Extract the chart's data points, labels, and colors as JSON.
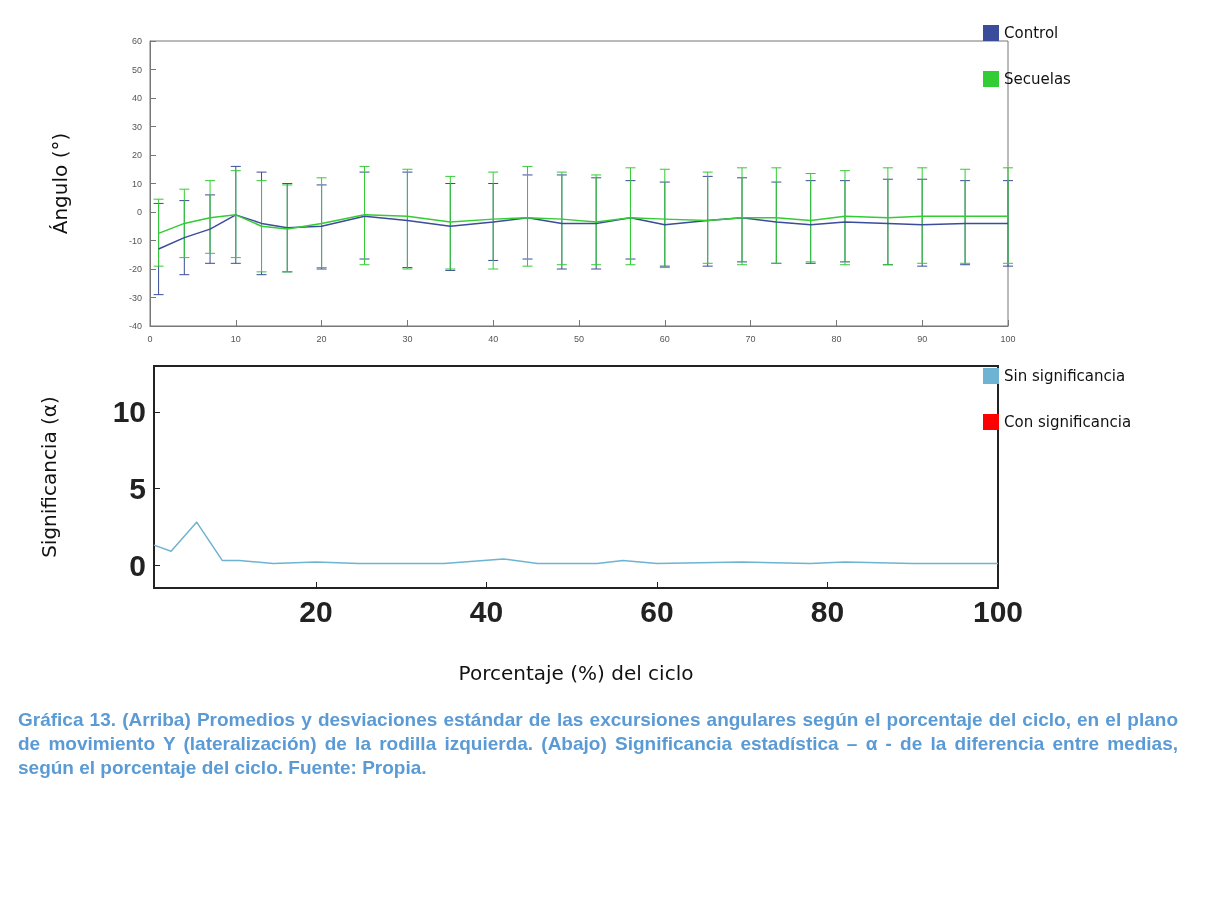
{
  "chart_data": [
    {
      "type": "line",
      "ylabel": "Ángulo (°)",
      "xlim": [
        0,
        100
      ],
      "xticks": [
        0,
        10,
        20,
        30,
        40,
        50,
        60,
        70,
        80,
        90,
        100
      ],
      "ylim": [
        -40,
        60
      ],
      "yticks": [
        -40,
        -30,
        -20,
        -10,
        0,
        10,
        20,
        30,
        40,
        50,
        60
      ],
      "grid": false,
      "legend": "right",
      "marker": "none",
      "x": [
        1,
        4,
        7,
        10,
        13,
        16,
        20,
        25,
        30,
        35,
        40,
        44,
        48,
        52,
        56,
        60,
        65,
        69,
        73,
        77,
        81,
        86,
        90,
        95,
        100
      ],
      "series": [
        {
          "name": "Control",
          "color": "#3b4c9b",
          "values": [
            -13,
            -9,
            -6,
            -1,
            -4,
            -5.5,
            -5,
            -1.5,
            -3,
            -5,
            -3.5,
            -2,
            -4,
            -4,
            -2,
            -4.5,
            -3,
            -2,
            -3.5,
            -4.5,
            -3.5,
            -4,
            -4.5,
            -4,
            -4
          ],
          "errors": [
            [
              -29,
              3
            ],
            [
              -22,
              4
            ],
            [
              -18,
              6
            ],
            [
              -18,
              16
            ],
            [
              -22,
              14
            ],
            [
              -21,
              10
            ],
            [
              -20,
              9.5
            ],
            [
              -16.5,
              14
            ],
            [
              -19.5,
              14
            ],
            [
              -20.5,
              10
            ],
            [
              -17,
              10
            ],
            [
              -16.5,
              13
            ],
            [
              -20,
              13
            ],
            [
              -20,
              12
            ],
            [
              -16.5,
              11
            ],
            [
              -19,
              10.5
            ],
            [
              -19,
              12.5
            ],
            [
              -17.5,
              12
            ],
            [
              -18,
              10.5
            ],
            [
              -18,
              11
            ],
            [
              -17.5,
              11
            ],
            [
              -18.5,
              11.5
            ],
            [
              -19,
              11.5
            ],
            [
              -18.5,
              11
            ],
            [
              -19,
              11
            ]
          ]
        },
        {
          "name": "Secuelas",
          "color": "#33cc33",
          "values": [
            -7.5,
            -4,
            -2,
            -1,
            -5,
            -6,
            -4,
            -1,
            -1.5,
            -3.5,
            -2.5,
            -2,
            -2.5,
            -3.5,
            -2,
            -2.5,
            -3,
            -2,
            -2,
            -3,
            -1.5,
            -2,
            -1.5,
            -1.5,
            -1.5
          ],
          "errors": [
            [
              -19,
              4.5
            ],
            [
              -16,
              8
            ],
            [
              -14.5,
              11
            ],
            [
              -16,
              14.5
            ],
            [
              -21,
              11
            ],
            [
              -21,
              9.5
            ],
            [
              -19.5,
              12
            ],
            [
              -18.5,
              16
            ],
            [
              -20,
              15
            ],
            [
              -20,
              12.5
            ],
            [
              -20,
              14
            ],
            [
              -19,
              16
            ],
            [
              -18.5,
              14
            ],
            [
              -18.5,
              13
            ],
            [
              -18.5,
              15.5
            ],
            [
              -19.5,
              15
            ],
            [
              -18,
              14
            ],
            [
              -18.5,
              15.5
            ],
            [
              -18,
              15.5
            ],
            [
              -17.5,
              13.5
            ],
            [
              -18.5,
              14.5
            ],
            [
              -18.5,
              15.5
            ],
            [
              -18,
              15.5
            ],
            [
              -18,
              15
            ],
            [
              -18,
              15.5
            ]
          ]
        }
      ]
    },
    {
      "type": "line",
      "ylabel": "Significancia (α)",
      "xlabel": "Porcentaje (%) del ciclo",
      "xlim": [
        1,
        100
      ],
      "xticks": [
        20,
        40,
        60,
        80,
        100
      ],
      "ylim": [
        -1.5,
        13
      ],
      "yticks": [
        0,
        5,
        10
      ],
      "grid": false,
      "legend": "right",
      "marker": "none",
      "x": [
        1,
        3,
        6,
        9,
        11,
        15,
        20,
        25,
        30,
        35,
        42,
        46,
        53,
        56,
        60,
        70,
        78,
        82,
        90,
        100
      ],
      "series": [
        {
          "name": "Sin significancia",
          "color": "#6fb3d2",
          "values": [
            1.3,
            0.9,
            2.8,
            0.3,
            0.3,
            0.1,
            0.2,
            0.1,
            0.1,
            0.1,
            0.4,
            0.1,
            0.1,
            0.3,
            0.1,
            0.2,
            0.1,
            0.2,
            0.1,
            0.1
          ]
        },
        {
          "name": "Con significancia",
          "color": "#ff0000",
          "values": [
            null,
            null,
            null,
            null,
            null,
            null,
            null,
            null,
            null,
            null,
            null,
            null,
            null,
            null,
            null,
            null,
            null,
            null,
            null,
            null
          ]
        }
      ],
      "annotations": [
        "Gráfica 13. (Arriba) Promedios y desviaciones estándar de las excursiones angulares según el porcentaje del ciclo, en el plano de movimiento Y (lateralización) de la rodilla izquierda. (Abajo) Significancia estadística – α - de la diferencia entre medias, según el porcentaje del ciclo. Fuente: Propia."
      ]
    }
  ]
}
